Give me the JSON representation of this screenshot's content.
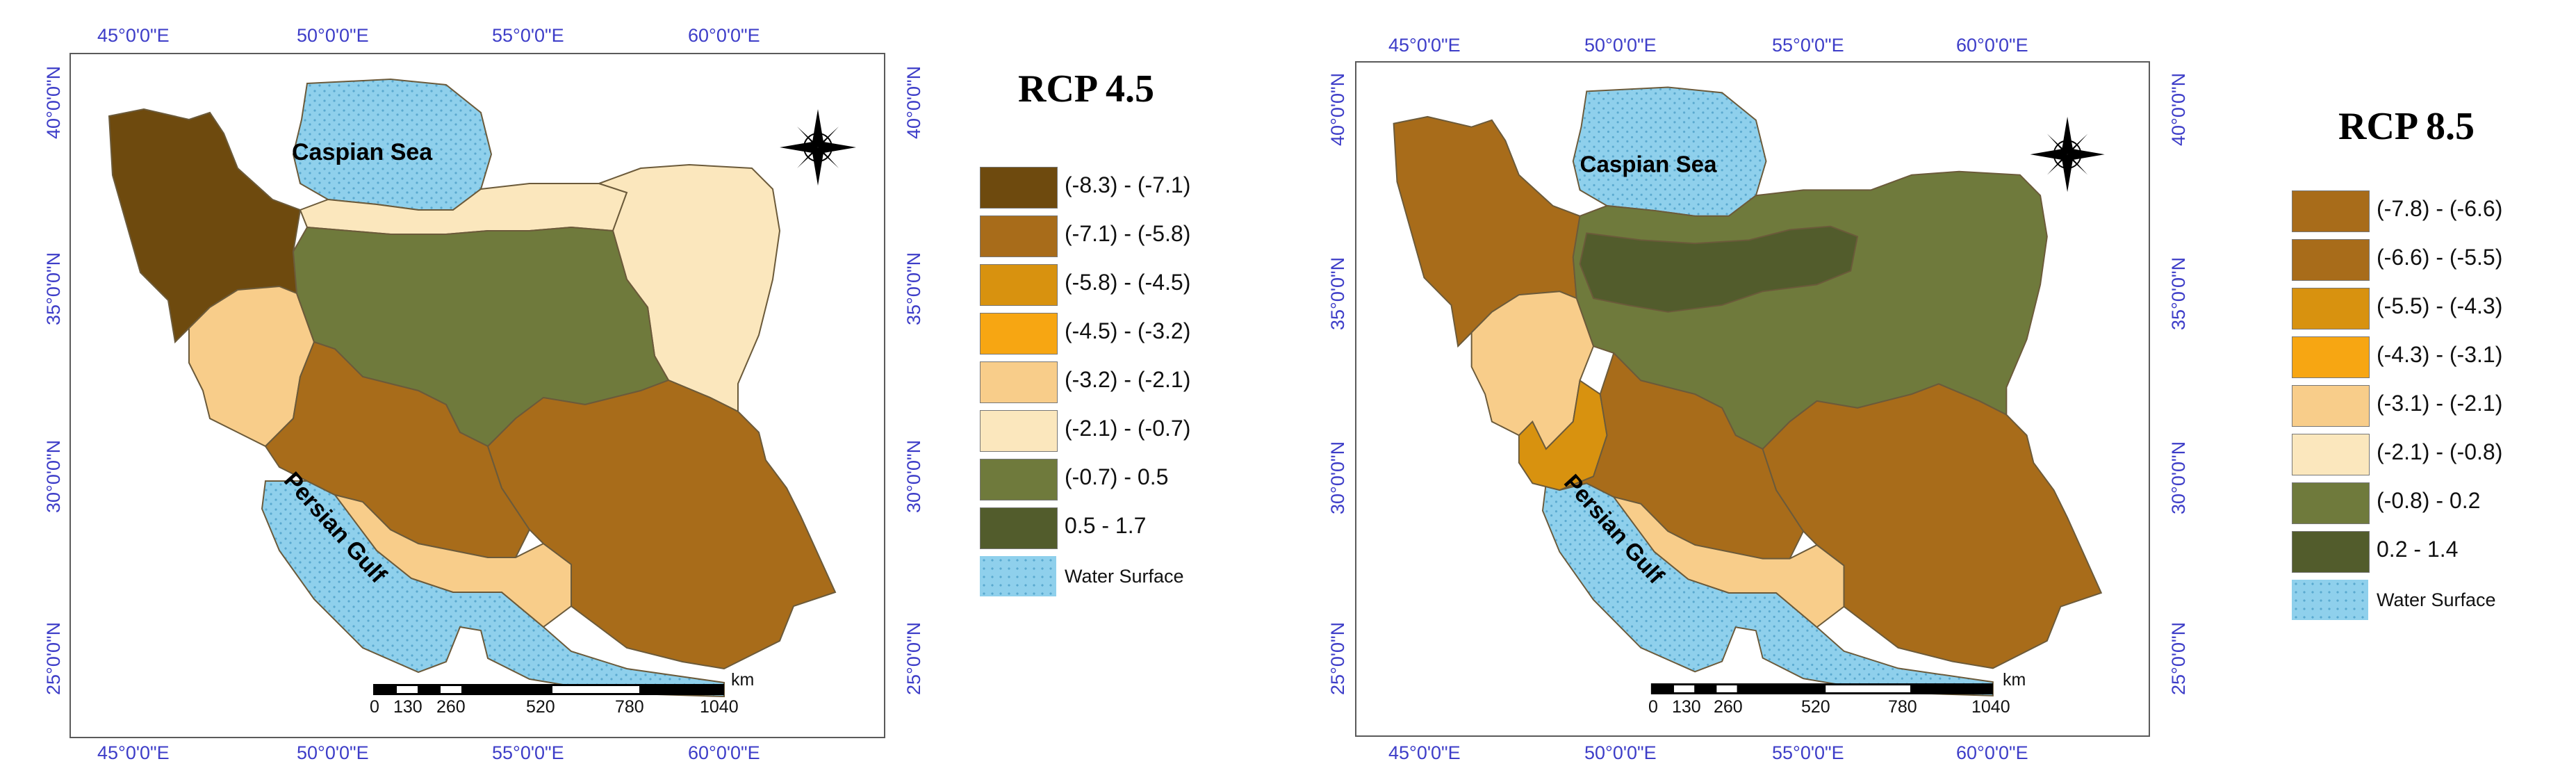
{
  "left": {
    "title": "RCP 4.5",
    "x_ticks": [
      "45°0'0\"E",
      "50°0'0\"E",
      "55°0'0\"E",
      "60°0'0\"E"
    ],
    "y_ticks": [
      "40°0'0\"N",
      "35°0'0\"N",
      "30°0'0\"N",
      "25°0'0\"N"
    ],
    "caspian": "Caspian Sea",
    "gulf": "Persian Gulf",
    "legend": [
      {
        "label": "(-8.3) - (-7.1)",
        "color": "#6e4a0e"
      },
      {
        "label": "(-7.1) - (-5.8)",
        "color": "#a86c1a"
      },
      {
        "label": "(-5.8) - (-4.5)",
        "color": "#d8920f"
      },
      {
        "label": "(-4.5) - (-3.2)",
        "color": "#f7a612"
      },
      {
        "label": "(-3.2) - (-2.1)",
        "color": "#f8cd8a"
      },
      {
        "label": "(-2.1) - (-0.7)",
        "color": "#fbe7bd"
      },
      {
        "label": "(-0.7) - 0.5",
        "color": "#6f7a3c"
      },
      {
        "label": "0.5 - 1.7",
        "color": "#525c2c"
      }
    ],
    "water_label": "Water Surface",
    "scale_labels": [
      "0",
      "130",
      "260",
      "520",
      "780",
      "1040"
    ],
    "scale_unit": "km"
  },
  "right": {
    "title": "RCP 8.5",
    "x_ticks": [
      "45°0'0\"E",
      "50°0'0\"E",
      "55°0'0\"E",
      "60°0'0\"E"
    ],
    "y_ticks": [
      "40°0'0\"N",
      "35°0'0\"N",
      "30°0'0\"N",
      "25°0'0\"N"
    ],
    "caspian": "Caspian Sea",
    "gulf": "Persian Gulf",
    "legend": [
      {
        "label": "(-7.8) - (-6.6)",
        "color": "#a86c1a"
      },
      {
        "label": "(-6.6) - (-5.5)",
        "color": "#a86c1a"
      },
      {
        "label": "(-5.5) - (-4.3)",
        "color": "#d8920f"
      },
      {
        "label": "(-4.3) - (-3.1)",
        "color": "#f7a612"
      },
      {
        "label": "(-3.1) - (-2.1)",
        "color": "#f8cd8a"
      },
      {
        "label": "(-2.1) - (-0.8)",
        "color": "#fbe7bd"
      },
      {
        "label": "(-0.8) - 0.2",
        "color": "#6f7a3c"
      },
      {
        "label": "0.2 - 1.4",
        "color": "#525c2c"
      }
    ],
    "water_label": "Water Surface",
    "scale_labels": [
      "0",
      "130",
      "260",
      "520",
      "780",
      "1040"
    ],
    "scale_unit": "km"
  },
  "colors": {
    "water": "#8fd0ec",
    "water_dot": "#5aa9cf",
    "frame": "#5a5a5a",
    "tick_text": "#3d3dc8",
    "border": "#6b5a3a"
  }
}
